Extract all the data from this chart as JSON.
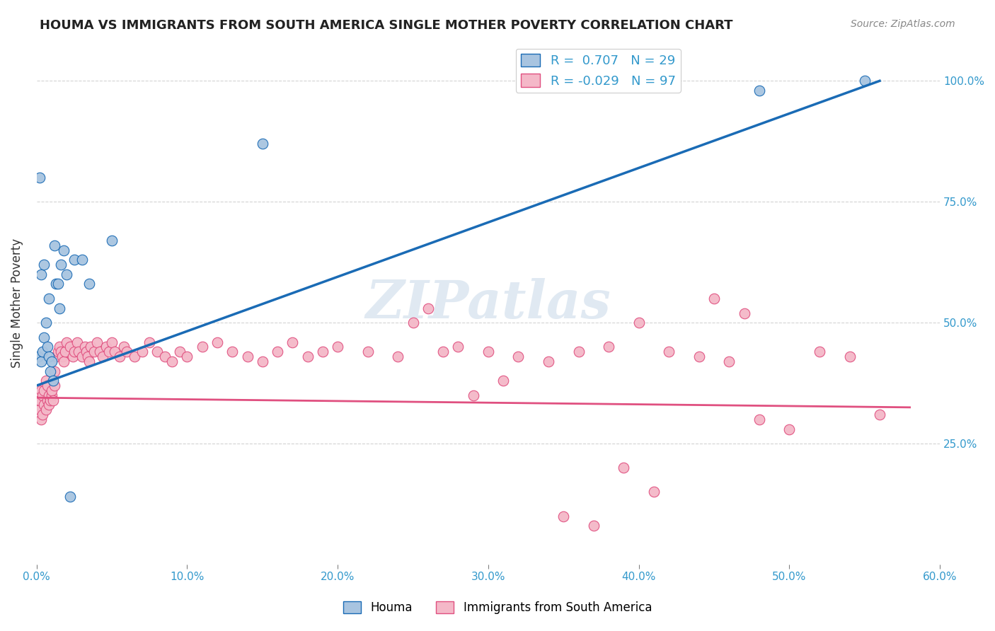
{
  "title": "HOUMA VS IMMIGRANTS FROM SOUTH AMERICA SINGLE MOTHER POVERTY CORRELATION CHART",
  "source": "Source: ZipAtlas.com",
  "ylabel": "Single Mother Poverty",
  "y_tick_labels": [
    "25.0%",
    "50.0%",
    "75.0%",
    "100.0%"
  ],
  "y_tick_values": [
    0.25,
    0.5,
    0.75,
    1.0
  ],
  "xlim": [
    0.0,
    0.6
  ],
  "ylim": [
    0.0,
    1.08
  ],
  "houma_color": "#a8c4e0",
  "houma_line_color": "#1a6bb5",
  "immigrants_color": "#f4b8c8",
  "immigrants_line_color": "#e05080",
  "houma_R": 0.707,
  "houma_N": 29,
  "immigrants_R": -0.029,
  "immigrants_N": 97,
  "watermark": "ZIPatlas",
  "houma_x": [
    0.001,
    0.002,
    0.003,
    0.003,
    0.004,
    0.005,
    0.005,
    0.006,
    0.007,
    0.008,
    0.008,
    0.009,
    0.01,
    0.011,
    0.012,
    0.013,
    0.014,
    0.015,
    0.016,
    0.018,
    0.02,
    0.022,
    0.025,
    0.03,
    0.035,
    0.05,
    0.15,
    0.48,
    0.55
  ],
  "houma_y": [
    0.43,
    0.8,
    0.42,
    0.6,
    0.44,
    0.47,
    0.62,
    0.5,
    0.45,
    0.43,
    0.55,
    0.4,
    0.42,
    0.38,
    0.66,
    0.58,
    0.58,
    0.53,
    0.62,
    0.65,
    0.6,
    0.14,
    0.63,
    0.63,
    0.58,
    0.67,
    0.87,
    0.98,
    1.0
  ],
  "immigrants_x": [
    0.001,
    0.002,
    0.002,
    0.003,
    0.003,
    0.004,
    0.004,
    0.005,
    0.005,
    0.006,
    0.006,
    0.007,
    0.007,
    0.008,
    0.008,
    0.009,
    0.01,
    0.01,
    0.011,
    0.012,
    0.012,
    0.013,
    0.014,
    0.015,
    0.016,
    0.017,
    0.018,
    0.019,
    0.02,
    0.022,
    0.024,
    0.025,
    0.027,
    0.028,
    0.03,
    0.032,
    0.033,
    0.034,
    0.035,
    0.036,
    0.038,
    0.04,
    0.042,
    0.044,
    0.046,
    0.048,
    0.05,
    0.052,
    0.055,
    0.058,
    0.06,
    0.065,
    0.07,
    0.075,
    0.08,
    0.085,
    0.09,
    0.095,
    0.1,
    0.11,
    0.12,
    0.13,
    0.14,
    0.15,
    0.16,
    0.17,
    0.18,
    0.19,
    0.2,
    0.22,
    0.24,
    0.25,
    0.26,
    0.27,
    0.28,
    0.3,
    0.32,
    0.34,
    0.36,
    0.38,
    0.4,
    0.42,
    0.44,
    0.46,
    0.48,
    0.5,
    0.52,
    0.54,
    0.56,
    0.39,
    0.41,
    0.35,
    0.37,
    0.29,
    0.31,
    0.45,
    0.47
  ],
  "immigrants_y": [
    0.33,
    0.32,
    0.34,
    0.3,
    0.36,
    0.31,
    0.35,
    0.33,
    0.36,
    0.32,
    0.38,
    0.34,
    0.37,
    0.35,
    0.33,
    0.34,
    0.35,
    0.36,
    0.34,
    0.37,
    0.4,
    0.43,
    0.44,
    0.45,
    0.44,
    0.43,
    0.42,
    0.44,
    0.46,
    0.45,
    0.43,
    0.44,
    0.46,
    0.44,
    0.43,
    0.45,
    0.44,
    0.43,
    0.42,
    0.45,
    0.44,
    0.46,
    0.44,
    0.43,
    0.45,
    0.44,
    0.46,
    0.44,
    0.43,
    0.45,
    0.44,
    0.43,
    0.44,
    0.46,
    0.44,
    0.43,
    0.42,
    0.44,
    0.43,
    0.45,
    0.46,
    0.44,
    0.43,
    0.42,
    0.44,
    0.46,
    0.43,
    0.44,
    0.45,
    0.44,
    0.43,
    0.5,
    0.53,
    0.44,
    0.45,
    0.44,
    0.43,
    0.42,
    0.44,
    0.45,
    0.5,
    0.44,
    0.43,
    0.42,
    0.3,
    0.28,
    0.44,
    0.43,
    0.31,
    0.2,
    0.15,
    0.1,
    0.08,
    0.35,
    0.38,
    0.55,
    0.52
  ],
  "houma_trend_x": [
    0.0,
    0.56
  ],
  "houma_trend_y": [
    0.37,
    1.0
  ],
  "immigrants_trend_x": [
    0.0,
    0.58
  ],
  "immigrants_trend_y": [
    0.345,
    0.325
  ]
}
